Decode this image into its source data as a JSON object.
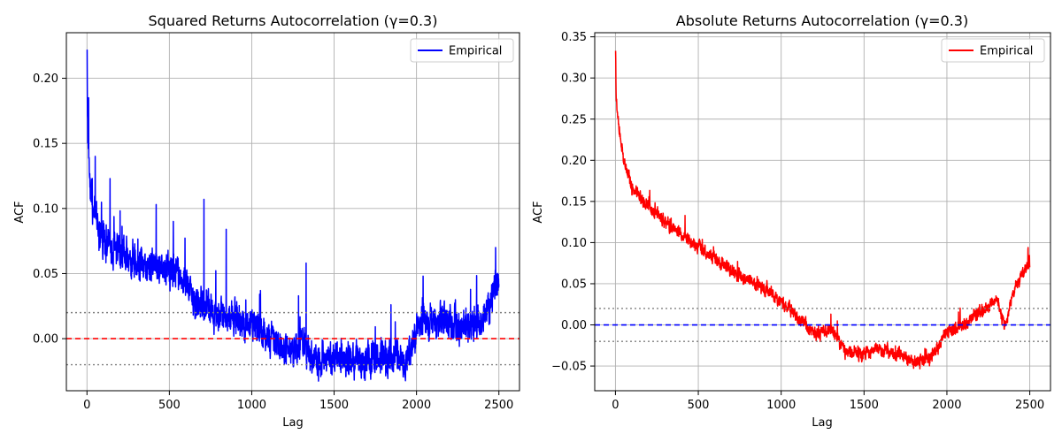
{
  "chart_data": [
    {
      "type": "line",
      "title": "Squared Returns Autocorrelation (γ=0.3)",
      "xlabel": "Lag",
      "ylabel": "ACF",
      "xlim": [
        -125,
        2625
      ],
      "ylim": [
        -0.04,
        0.235
      ],
      "xticks": [
        0,
        500,
        1000,
        1500,
        2000,
        2500
      ],
      "xtick_labels": [
        "0",
        "500",
        "1000",
        "1500",
        "2000",
        "2500"
      ],
      "yticks": [
        0.0,
        0.05,
        0.1,
        0.15,
        0.2
      ],
      "ytick_labels": [
        "0.00",
        "0.05",
        "0.10",
        "0.15",
        "0.20"
      ],
      "grid": true,
      "legend": {
        "position": "upper right",
        "entries": [
          "Empirical"
        ]
      },
      "series": [
        {
          "name": "Empirical",
          "color": "#0000ff",
          "style": "solid",
          "lag_range": [
            1,
            2500
          ],
          "trend": [
            [
              1,
              0.2
            ],
            [
              5,
              0.16
            ],
            [
              15,
              0.13
            ],
            [
              40,
              0.095
            ],
            [
              80,
              0.08
            ],
            [
              150,
              0.07
            ],
            [
              300,
              0.06
            ],
            [
              450,
              0.055
            ],
            [
              550,
              0.05
            ],
            [
              650,
              0.03
            ],
            [
              750,
              0.02
            ],
            [
              900,
              0.015
            ],
            [
              1000,
              0.012
            ],
            [
              1100,
              0.0
            ],
            [
              1200,
              -0.01
            ],
            [
              1300,
              -0.005
            ],
            [
              1400,
              -0.018
            ],
            [
              1600,
              -0.015
            ],
            [
              1800,
              -0.015
            ],
            [
              1950,
              -0.015
            ],
            [
              2000,
              0.01
            ],
            [
              2100,
              0.015
            ],
            [
              2200,
              0.01
            ],
            [
              2350,
              0.01
            ],
            [
              2450,
              0.025
            ],
            [
              2500,
              0.045
            ]
          ],
          "noise": 0.012,
          "spikes": [
            [
              1,
              0.222
            ],
            [
              10,
              0.185
            ],
            [
              50,
              0.14
            ],
            [
              140,
              0.123
            ],
            [
              420,
              0.103
            ],
            [
              710,
              0.107
            ],
            [
              845,
              0.084
            ],
            [
              1330,
              0.058
            ],
            [
              1845,
              0.026
            ],
            [
              2040,
              0.048
            ],
            [
              2480,
              0.07
            ]
          ]
        },
        {
          "name": "zero line",
          "color": "#ff0000",
          "style": "dashed",
          "y": 0.0
        },
        {
          "name": "upper confidence bound",
          "color": "#808080",
          "style": "dotted",
          "y": 0.02
        },
        {
          "name": "lower confidence bound",
          "color": "#808080",
          "style": "dotted",
          "y": -0.02
        }
      ]
    },
    {
      "type": "line",
      "title": "Absolute Returns Autocorrelation (γ=0.3)",
      "xlabel": "Lag",
      "ylabel": "ACF",
      "xlim": [
        -125,
        2625
      ],
      "ylim": [
        -0.08,
        0.355
      ],
      "xticks": [
        0,
        500,
        1000,
        1500,
        2000,
        2500
      ],
      "xtick_labels": [
        "0",
        "500",
        "1000",
        "1500",
        "2000",
        "2500"
      ],
      "yticks": [
        -0.05,
        0.0,
        0.05,
        0.1,
        0.15,
        0.2,
        0.25,
        0.3,
        0.35
      ],
      "ytick_labels": [
        "−0.05",
        "0.00",
        "0.05",
        "0.10",
        "0.15",
        "0.20",
        "0.25",
        "0.30",
        "0.35"
      ],
      "grid": true,
      "legend": {
        "position": "upper right",
        "entries": [
          "Empirical"
        ]
      },
      "series": [
        {
          "name": "Empirical",
          "color": "#ff0000",
          "style": "solid",
          "lag_range": [
            1,
            2500
          ],
          "trend": [
            [
              1,
              0.33
            ],
            [
              5,
              0.27
            ],
            [
              20,
              0.24
            ],
            [
              50,
              0.2
            ],
            [
              100,
              0.165
            ],
            [
              200,
              0.145
            ],
            [
              300,
              0.125
            ],
            [
              400,
              0.11
            ],
            [
              500,
              0.095
            ],
            [
              600,
              0.08
            ],
            [
              700,
              0.065
            ],
            [
              800,
              0.055
            ],
            [
              900,
              0.045
            ],
            [
              1000,
              0.03
            ],
            [
              1100,
              0.01
            ],
            [
              1200,
              -0.01
            ],
            [
              1300,
              -0.005
            ],
            [
              1400,
              -0.035
            ],
            [
              1500,
              -0.035
            ],
            [
              1600,
              -0.03
            ],
            [
              1700,
              -0.035
            ],
            [
              1800,
              -0.045
            ],
            [
              1900,
              -0.04
            ],
            [
              2000,
              -0.01
            ],
            [
              2100,
              0.0
            ],
            [
              2200,
              0.015
            ],
            [
              2300,
              0.03
            ],
            [
              2350,
              0.0
            ],
            [
              2400,
              0.04
            ],
            [
              2450,
              0.06
            ],
            [
              2500,
              0.075
            ]
          ],
          "noise": 0.007,
          "spikes": [
            [
              1,
              0.333
            ],
            [
              420,
              0.133
            ],
            [
              1300,
              0.013
            ],
            [
              2490,
              0.094
            ]
          ]
        },
        {
          "name": "zero line",
          "color": "#0000ff",
          "style": "dashed",
          "y": 0.0
        },
        {
          "name": "upper confidence bound",
          "color": "#808080",
          "style": "dotted",
          "y": 0.02
        },
        {
          "name": "lower confidence bound",
          "color": "#808080",
          "style": "dotted",
          "y": -0.02
        }
      ]
    }
  ]
}
